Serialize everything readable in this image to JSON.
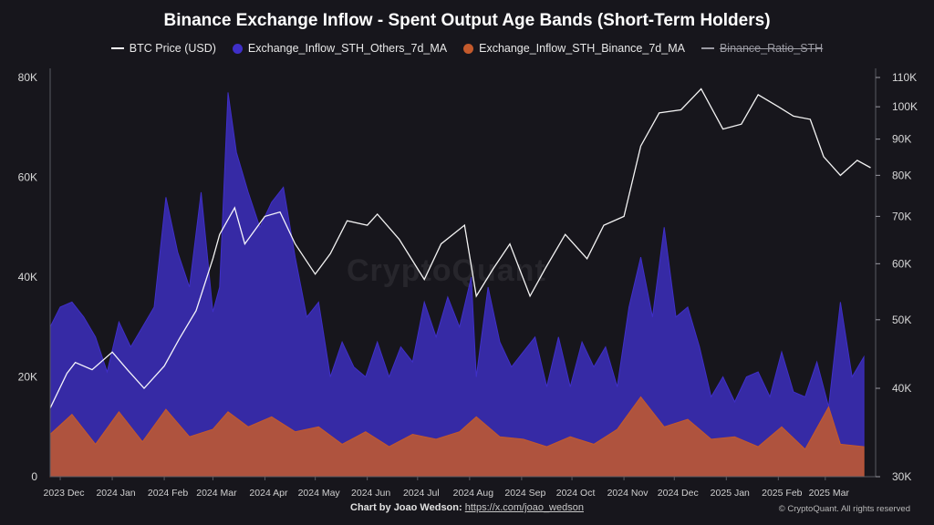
{
  "header": {
    "title": "Binance Exchange Inflow - Spent Output Age Bands (Short-Term Holders)"
  },
  "legend": [
    {
      "label": "BTC Price (USD)",
      "kind": "line",
      "color": "#ffffff"
    },
    {
      "label": "Exchange_Inflow_STH_Others_7d_MA",
      "kind": "dot",
      "color": "#3f2fc8"
    },
    {
      "label": "Exchange_Inflow_STH_Binance_7d_MA",
      "kind": "dot",
      "color": "#c45a2c"
    },
    {
      "label": "Binance_Ratio_STH",
      "kind": "line-struck",
      "color": "#9a9aa2"
    }
  ],
  "watermark": "CryptoQuant",
  "footer": {
    "credit": "Chart by Joao Wedson:",
    "link": "https://x.com/joao_wedson",
    "copyright": "© CryptoQuant. All rights reserved"
  },
  "chart_data": {
    "type": "area",
    "x_tick_labels": [
      "2023 Dec",
      "2024 Jan",
      "2024 Feb",
      "2024 Mar",
      "2024 Apr",
      "2024 May",
      "2024 Jun",
      "2024 Jul",
      "2024 Aug",
      "2024 Sep",
      "2024 Oct",
      "2024 Nov",
      "2024 Dec",
      "2025 Jan",
      "2025 Feb",
      "2025 Mar"
    ],
    "y_left": {
      "ticks": [
        0,
        20000,
        40000,
        60000,
        80000
      ],
      "tick_labels": [
        "0",
        "20K",
        "40K",
        "60K",
        "80K"
      ],
      "ylim": [
        0,
        80000
      ]
    },
    "y_right": {
      "scale": "log",
      "ticks": [
        30000,
        40000,
        50000,
        60000,
        70000,
        80000,
        90000,
        100000,
        110000
      ],
      "tick_labels": [
        "30K",
        "40K",
        "50K",
        "60K",
        "70K",
        "80K",
        "90K",
        "100K",
        "110K"
      ],
      "ylim": [
        30000,
        110000
      ]
    },
    "grid": false,
    "legend_position": "top-center",
    "series": [
      {
        "name": "Exchange_Inflow_STH_Others_7d_MA",
        "axis": "left",
        "type": "area",
        "color": "#3f2fc8",
        "x": [
          "2023-11-25",
          "2023-12-01",
          "2023-12-08",
          "2023-12-15",
          "2023-12-22",
          "2023-12-29",
          "2024-01-05",
          "2024-01-12",
          "2024-01-19",
          "2024-01-26",
          "2024-02-02",
          "2024-02-09",
          "2024-02-16",
          "2024-02-23",
          "2024-03-01",
          "2024-03-05",
          "2024-03-10",
          "2024-03-15",
          "2024-03-22",
          "2024-03-29",
          "2024-04-05",
          "2024-04-12",
          "2024-04-19",
          "2024-04-26",
          "2024-05-03",
          "2024-05-10",
          "2024-05-17",
          "2024-05-24",
          "2024-05-31",
          "2024-06-07",
          "2024-06-14",
          "2024-06-21",
          "2024-06-28",
          "2024-07-05",
          "2024-07-12",
          "2024-07-19",
          "2024-07-26",
          "2024-08-02",
          "2024-08-05",
          "2024-08-12",
          "2024-08-19",
          "2024-08-26",
          "2024-09-02",
          "2024-09-09",
          "2024-09-16",
          "2024-09-23",
          "2024-09-30",
          "2024-10-07",
          "2024-10-14",
          "2024-10-21",
          "2024-10-28",
          "2024-11-04",
          "2024-11-11",
          "2024-11-18",
          "2024-11-25",
          "2024-12-02",
          "2024-12-09",
          "2024-12-16",
          "2024-12-23",
          "2024-12-30",
          "2025-01-06",
          "2025-01-13",
          "2025-01-20",
          "2025-01-27",
          "2025-02-03",
          "2025-02-10",
          "2025-02-17",
          "2025-02-24",
          "2025-03-03",
          "2025-03-10",
          "2025-03-17",
          "2025-03-24"
        ],
        "values": [
          30000,
          34000,
          35000,
          32000,
          28000,
          21000,
          31000,
          26000,
          30000,
          34000,
          56000,
          45000,
          38000,
          57000,
          33000,
          38000,
          77000,
          65000,
          57000,
          50000,
          55000,
          58000,
          44000,
          32000,
          35000,
          20000,
          27000,
          22000,
          20000,
          27000,
          20000,
          26000,
          23000,
          35000,
          28000,
          36000,
          30000,
          40000,
          20000,
          38000,
          27000,
          22000,
          25000,
          28000,
          18000,
          28000,
          18000,
          27000,
          22000,
          26000,
          18000,
          34000,
          44000,
          32000,
          50000,
          32000,
          34000,
          26000,
          16000,
          20000,
          15000,
          20000,
          21000,
          16000,
          25000,
          17000,
          16000,
          23000,
          14000,
          35000,
          20000,
          24000
        ]
      },
      {
        "name": "Exchange_Inflow_STH_Binance_7d_MA",
        "axis": "left",
        "type": "area",
        "color": "#c45a2c",
        "x": [
          "2023-11-25",
          "2023-12-08",
          "2023-12-22",
          "2024-01-05",
          "2024-01-19",
          "2024-02-02",
          "2024-02-16",
          "2024-03-01",
          "2024-03-10",
          "2024-03-22",
          "2024-04-05",
          "2024-04-19",
          "2024-05-03",
          "2024-05-17",
          "2024-05-31",
          "2024-06-14",
          "2024-06-28",
          "2024-07-12",
          "2024-07-26",
          "2024-08-05",
          "2024-08-19",
          "2024-09-02",
          "2024-09-16",
          "2024-09-30",
          "2024-10-14",
          "2024-10-28",
          "2024-11-11",
          "2024-11-25",
          "2024-12-09",
          "2024-12-23",
          "2025-01-06",
          "2025-01-20",
          "2025-02-03",
          "2025-02-17",
          "2025-03-03",
          "2025-03-10",
          "2025-03-24"
        ],
        "values": [
          8500,
          12500,
          6500,
          13000,
          7000,
          13500,
          8000,
          9500,
          13000,
          10000,
          12000,
          9000,
          10000,
          6500,
          9000,
          6000,
          8500,
          7500,
          9000,
          12000,
          8000,
          7500,
          6000,
          8000,
          6500,
          9500,
          16000,
          10000,
          11500,
          7500,
          8000,
          6000,
          10000,
          5500,
          14000,
          6500,
          6000
        ]
      },
      {
        "name": "BTC Price (USD)",
        "axis": "right",
        "type": "line",
        "color": "#ffffff",
        "x": [
          "2023-11-25",
          "2023-12-05",
          "2023-12-10",
          "2023-12-20",
          "2024-01-01",
          "2024-01-10",
          "2024-01-20",
          "2024-02-01",
          "2024-02-10",
          "2024-02-20",
          "2024-03-01",
          "2024-03-05",
          "2024-03-14",
          "2024-03-20",
          "2024-04-01",
          "2024-04-10",
          "2024-04-19",
          "2024-05-01",
          "2024-05-10",
          "2024-05-20",
          "2024-06-01",
          "2024-06-07",
          "2024-06-20",
          "2024-07-05",
          "2024-07-15",
          "2024-07-29",
          "2024-08-05",
          "2024-08-15",
          "2024-08-25",
          "2024-09-06",
          "2024-09-15",
          "2024-09-27",
          "2024-10-10",
          "2024-10-20",
          "2024-11-01",
          "2024-11-11",
          "2024-11-22",
          "2024-12-05",
          "2024-12-17",
          "2024-12-30",
          "2025-01-10",
          "2025-01-20",
          "2025-02-01",
          "2025-02-10",
          "2025-02-20",
          "2025-02-28",
          "2025-03-10",
          "2025-03-20",
          "2025-03-28"
        ],
        "values": [
          37500,
          42000,
          43500,
          42500,
          45000,
          42500,
          40000,
          43000,
          47000,
          51500,
          61000,
          66000,
          72000,
          64000,
          70000,
          71000,
          64000,
          58000,
          62000,
          69000,
          68000,
          70500,
          65000,
          57000,
          64000,
          68000,
          54000,
          59000,
          64000,
          54000,
          59000,
          66000,
          61000,
          68000,
          70000,
          88000,
          98000,
          99000,
          106000,
          93000,
          94500,
          104000,
          100000,
          97000,
          96000,
          85000,
          80000,
          84000,
          82000
        ]
      },
      {
        "name": "Binance_Ratio_STH",
        "axis": "right",
        "type": "line",
        "hidden": true,
        "color": "#9a9aa2",
        "x": [],
        "values": []
      }
    ]
  }
}
